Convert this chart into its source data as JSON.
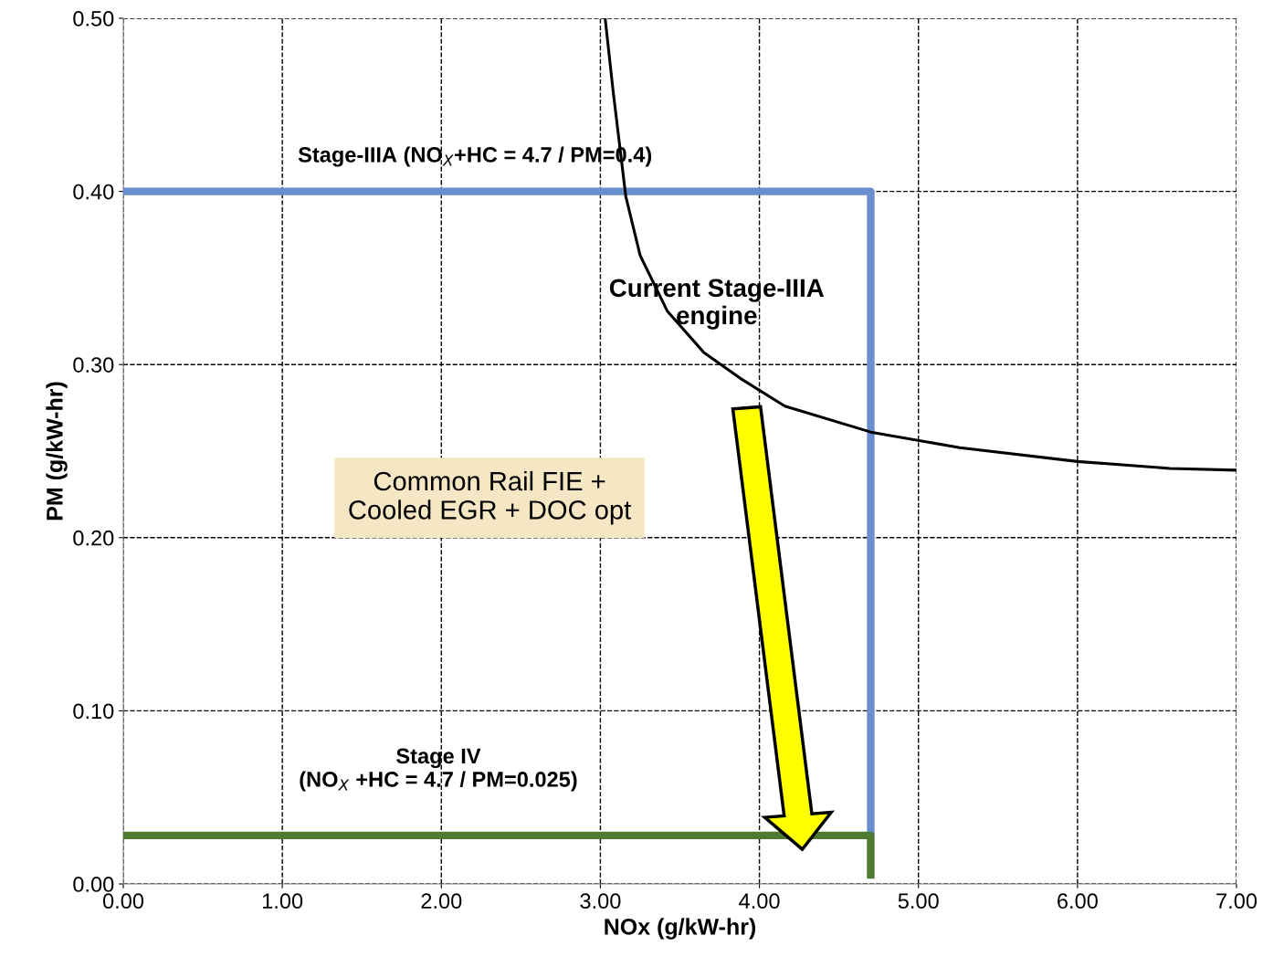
{
  "chart_data": {
    "type": "line",
    "xlabel": "NOx (g/kW-hr)",
    "ylabel": "PM (g/kW-hr)",
    "series": [
      {
        "name": "Stage-IIIA (NO$_{X}$+HC = 4.7 / PM=0.4)",
        "color": "#6a8fcf",
        "x": [
          0,
          4.7,
          4.7
        ],
        "values": [
          0.4,
          0.4,
          0.028
        ]
      },
      {
        "name": "Stage IV\n(NO$_{X}$ +HC = 4.7 / PM=0.025)",
        "color": "#4f7a32",
        "x": [
          0,
          4.7,
          4.7
        ],
        "values": [
          0.028,
          0.028,
          0.003
        ]
      },
      {
        "name": "Current Stage-IIIA\nengine",
        "color": "#000000",
        "x": [
          3.03,
          3.08,
          3.16,
          3.25,
          3.42,
          3.65,
          3.88,
          4.16,
          4.7,
          5.26,
          6.0,
          6.58,
          7.0
        ],
        "values": [
          0.5,
          0.458,
          0.397,
          0.363,
          0.331,
          0.307,
          0.292,
          0.276,
          0.261,
          0.252,
          0.244,
          0.24,
          0.239
        ]
      }
    ],
    "annotations": [
      "Common Rail FIE +\nCooled EGR + DOC opt"
    ],
    "xlim": [
      0,
      7
    ],
    "ylim": [
      0,
      0.5
    ],
    "xticks": [
      {
        "value": 0,
        "label": "0.00"
      },
      {
        "value": 1,
        "label": "1.00"
      },
      {
        "value": 2,
        "label": "2.00"
      },
      {
        "value": 3,
        "label": "3.00"
      },
      {
        "value": 4,
        "label": "4.00"
      },
      {
        "value": 5,
        "label": "5.00"
      },
      {
        "value": 6,
        "label": "6.00"
      },
      {
        "value": 7,
        "label": "7.00"
      }
    ],
    "yticks": [
      {
        "value": 0,
        "label": "0.00"
      },
      {
        "value": 0.1,
        "label": "0.10"
      },
      {
        "value": 0.2,
        "label": "0.20"
      },
      {
        "value": 0.3,
        "label": "0.30"
      },
      {
        "value": 0.4,
        "label": "0.40"
      },
      {
        "value": 0.5,
        "label": "0.50"
      }
    ],
    "grid": true,
    "line_style": "solid",
    "marker": "none"
  }
}
